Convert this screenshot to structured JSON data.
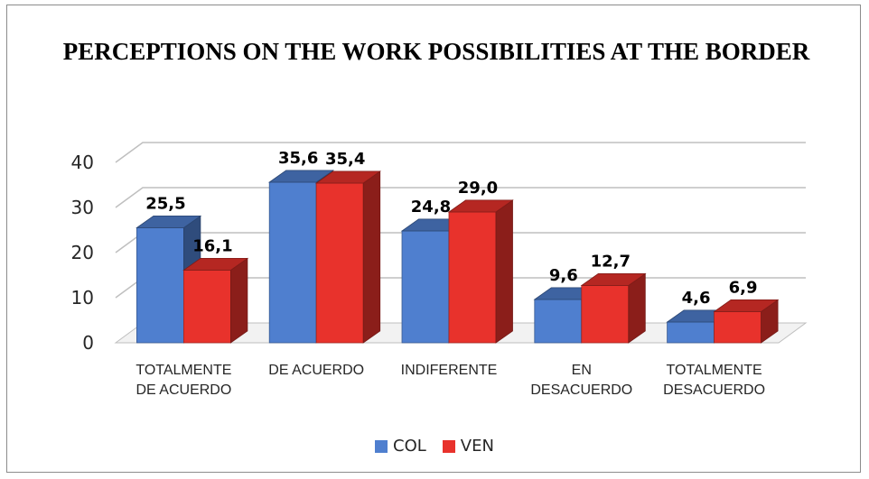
{
  "chart_data": {
    "type": "bar",
    "title": "PERCEPTIONS ON THE WORK POSSIBILITIES AT THE BORDER",
    "categories": [
      [
        "TOTALMENTE",
        "DE ACUERDO"
      ],
      [
        "DE ACUERDO"
      ],
      [
        "INDIFERENTE"
      ],
      [
        "EN",
        "DESACUERDO"
      ],
      [
        "TOTALMENTE",
        "DESACUERDO"
      ]
    ],
    "series": [
      {
        "name": "COL",
        "values": [
          25.5,
          35.6,
          24.8,
          9.6,
          4.6
        ],
        "labels": [
          "25,5",
          "35,6",
          "24,8",
          "9,6",
          "4,6"
        ],
        "color": "#4f7fcf"
      },
      {
        "name": "VEN",
        "values": [
          16.1,
          35.4,
          29.0,
          12.7,
          6.9
        ],
        "labels": [
          "16,1",
          "35,4",
          "29,0",
          "12,7",
          "6,9"
        ],
        "color": "#e8322c"
      }
    ],
    "ylim": [
      0,
      40
    ],
    "yticks": [
      0,
      10,
      20,
      30,
      40
    ],
    "grid": true,
    "legend_position": "bottom",
    "style": "3d-clustered-column"
  }
}
